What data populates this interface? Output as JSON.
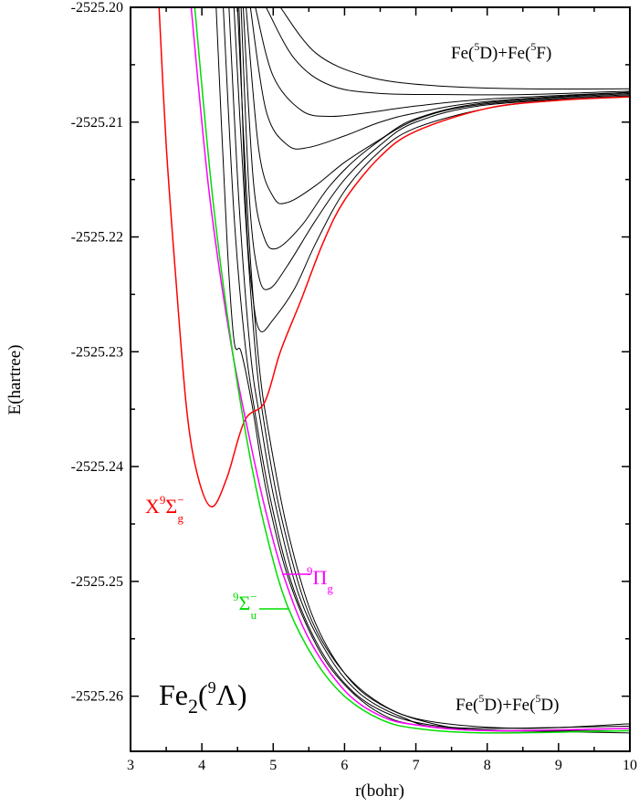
{
  "chart_data": {
    "type": "line",
    "title": "",
    "xlabel": "r(bohr)",
    "ylabel": "E(hartree)",
    "xlim": [
      3,
      10
    ],
    "ylim": [
      -2525.2648,
      -2525.2
    ],
    "xticks": [
      3,
      4,
      5,
      6,
      7,
      8,
      9,
      10
    ],
    "xtick_labels": [
      "3",
      "4",
      "5",
      "6",
      "7",
      "8",
      "9",
      "10"
    ],
    "yticks": [
      -2525.2,
      -2525.21,
      -2525.22,
      -2525.23,
      -2525.24,
      -2525.25,
      -2525.26
    ],
    "ytick_labels": [
      "-2525.20",
      "-2525.21",
      "-2525.22",
      "-2525.23",
      "-2525.24",
      "-2525.25",
      "-2525.26"
    ],
    "grid": false,
    "colors": {
      "black": "#000000",
      "red": "#ff0000",
      "green": "#00dd00",
      "magenta": "#ff00ff"
    },
    "annotations": {
      "molecule": {
        "base": "Fe",
        "sub": "2",
        "open": "(",
        "sup": "9",
        "sym": "Λ)"
      },
      "upper_asymptote": {
        "a": "Fe(",
        "sup1": "5",
        "b": "D)+Fe(",
        "sup2": "5",
        "c": "F)"
      },
      "lower_asymptote": {
        "a": "Fe(",
        "sup1": "5",
        "b": "D)+Fe(",
        "sup2": "5",
        "c": "D)"
      },
      "ground_state": {
        "a": "X",
        "sup": "9",
        "sym": "Σ",
        "supminus": "−",
        "sub": "g"
      },
      "pi_state": {
        "sup": "9",
        "sym": "Π",
        "sub": "g"
      },
      "sigma_u_state": {
        "sup": "9",
        "sym": "Σ",
        "supminus": "−",
        "sub": "u"
      }
    },
    "series": [
      {
        "color": "black",
        "points": [
          [
            4.52,
            -2525.2
          ],
          [
            4.62,
            -2525.218
          ],
          [
            4.72,
            -2525.2255
          ],
          [
            4.82,
            -2525.2282
          ],
          [
            5.0,
            -2525.2272
          ],
          [
            5.3,
            -2525.2245
          ],
          [
            5.6,
            -2525.2205
          ],
          [
            6.0,
            -2525.216
          ],
          [
            6.5,
            -2525.2125
          ],
          [
            7.0,
            -2525.2105
          ],
          [
            8.0,
            -2525.2088
          ],
          [
            9.0,
            -2525.2081
          ],
          [
            10.0,
            -2525.2078
          ]
        ]
      },
      {
        "color": "black",
        "points": [
          [
            4.55,
            -2525.2
          ],
          [
            4.67,
            -2525.217
          ],
          [
            4.8,
            -2525.2235
          ],
          [
            4.95,
            -2525.2245
          ],
          [
            5.2,
            -2525.2225
          ],
          [
            5.6,
            -2525.2185
          ],
          [
            6.0,
            -2525.215
          ],
          [
            6.5,
            -2525.212
          ],
          [
            7.0,
            -2525.21
          ],
          [
            8.0,
            -2525.2085
          ],
          [
            10.0,
            -2525.2077
          ]
        ]
      },
      {
        "color": "black",
        "points": [
          [
            4.58,
            -2525.2
          ],
          [
            4.72,
            -2525.215
          ],
          [
            4.87,
            -2525.22
          ],
          [
            5.05,
            -2525.221
          ],
          [
            5.4,
            -2525.219
          ],
          [
            5.8,
            -2525.2155
          ],
          [
            6.3,
            -2525.2125
          ],
          [
            7.0,
            -2525.2098
          ],
          [
            8.0,
            -2525.2084
          ],
          [
            10.0,
            -2525.2076
          ]
        ]
      },
      {
        "color": "black",
        "points": [
          [
            4.62,
            -2525.2
          ],
          [
            4.8,
            -2525.2125
          ],
          [
            5.0,
            -2525.2165
          ],
          [
            5.2,
            -2525.217
          ],
          [
            5.6,
            -2525.2155
          ],
          [
            6.0,
            -2525.2135
          ],
          [
            6.5,
            -2525.2115
          ],
          [
            7.0,
            -2525.2097
          ],
          [
            8.0,
            -2525.2083
          ],
          [
            10.0,
            -2525.2075
          ]
        ]
      },
      {
        "color": "black",
        "points": [
          [
            4.68,
            -2525.2
          ],
          [
            4.9,
            -2525.209
          ],
          [
            5.2,
            -2525.212
          ],
          [
            5.5,
            -2525.2122
          ],
          [
            6.0,
            -2525.2112
          ],
          [
            6.5,
            -2525.21
          ],
          [
            7.0,
            -2525.2092
          ],
          [
            8.0,
            -2525.2082
          ],
          [
            10.0,
            -2525.2074
          ]
        ]
      },
      {
        "color": "black",
        "points": [
          [
            4.75,
            -2525.2
          ],
          [
            5.0,
            -2525.206
          ],
          [
            5.4,
            -2525.209
          ],
          [
            5.8,
            -2525.2095
          ],
          [
            6.3,
            -2525.2092
          ],
          [
            7.0,
            -2525.2086
          ],
          [
            8.0,
            -2525.208
          ],
          [
            10.0,
            -2525.2074
          ]
        ]
      },
      {
        "color": "black",
        "points": [
          [
            4.9,
            -2525.2
          ],
          [
            5.3,
            -2525.2045
          ],
          [
            5.8,
            -2525.2068
          ],
          [
            6.5,
            -2525.2075
          ],
          [
            7.5,
            -2525.2076
          ],
          [
            8.5,
            -2525.2076
          ],
          [
            10.0,
            -2525.2073
          ]
        ]
      },
      {
        "color": "black",
        "points": [
          [
            5.1,
            -2525.2
          ],
          [
            5.6,
            -2525.204
          ],
          [
            6.3,
            -2525.206
          ],
          [
            7.2,
            -2525.2068
          ],
          [
            8.5,
            -2525.2071
          ],
          [
            10.0,
            -2525.2071
          ]
        ]
      },
      {
        "color": "black",
        "points": [
          [
            4.2,
            -2525.2
          ],
          [
            4.35,
            -2525.22
          ],
          [
            4.45,
            -2525.229
          ],
          [
            4.55,
            -2525.23
          ],
          [
            4.7,
            -2525.2345
          ],
          [
            4.9,
            -2525.242
          ],
          [
            5.2,
            -2525.2495
          ],
          [
            5.6,
            -2525.2555
          ],
          [
            6.0,
            -2525.259
          ],
          [
            6.5,
            -2525.2615
          ],
          [
            7.0,
            -2525.2625
          ],
          [
            8.0,
            -2525.263
          ],
          [
            10.0,
            -2525.263
          ]
        ]
      },
      {
        "color": "black",
        "points": [
          [
            4.3,
            -2525.2
          ],
          [
            4.45,
            -2525.218
          ],
          [
            4.6,
            -2525.229
          ],
          [
            4.75,
            -2525.2355
          ],
          [
            4.95,
            -2525.2425
          ],
          [
            5.25,
            -2525.25
          ],
          [
            5.65,
            -2525.2558
          ],
          [
            6.1,
            -2525.2595
          ],
          [
            6.6,
            -2525.2615
          ],
          [
            7.2,
            -2525.2625
          ],
          [
            8.0,
            -2525.2628
          ],
          [
            10.0,
            -2525.2626
          ]
        ]
      },
      {
        "color": "black",
        "points": [
          [
            4.38,
            -2525.2
          ],
          [
            4.52,
            -2525.217
          ],
          [
            4.68,
            -2525.23
          ],
          [
            4.82,
            -2525.236
          ],
          [
            5.02,
            -2525.243
          ],
          [
            5.35,
            -2525.251
          ],
          [
            5.75,
            -2525.2562
          ],
          [
            6.2,
            -2525.2597
          ],
          [
            6.8,
            -2525.2618
          ],
          [
            7.5,
            -2525.2628
          ],
          [
            10.0,
            -2525.2632
          ]
        ]
      },
      {
        "color": "black",
        "points": [
          [
            4.45,
            -2525.2
          ],
          [
            4.6,
            -2525.217
          ],
          [
            4.75,
            -2525.23
          ],
          [
            4.88,
            -2525.2365
          ],
          [
            5.1,
            -2525.244
          ],
          [
            5.45,
            -2525.252
          ],
          [
            5.85,
            -2525.2568
          ],
          [
            6.35,
            -2525.26
          ],
          [
            7.0,
            -2525.262
          ],
          [
            8.0,
            -2525.263
          ],
          [
            10.0,
            -2525.2628
          ]
        ]
      },
      {
        "color": "black",
        "points": [
          [
            4.5,
            -2525.2
          ],
          [
            4.65,
            -2525.219
          ],
          [
            4.8,
            -2525.231
          ],
          [
            4.95,
            -2525.2375
          ],
          [
            5.2,
            -2525.2455
          ],
          [
            5.55,
            -2525.253
          ],
          [
            6.0,
            -2525.258
          ],
          [
            6.5,
            -2525.2607
          ],
          [
            7.2,
            -2525.2622
          ],
          [
            8.5,
            -2525.2628
          ],
          [
            10.0,
            -2525.2624
          ]
        ]
      },
      {
        "color": "red",
        "name": "X9Σg−",
        "points": [
          [
            3.4,
            -2525.2
          ],
          [
            3.5,
            -2525.212
          ],
          [
            3.63,
            -2525.2232
          ],
          [
            3.79,
            -2525.2352
          ],
          [
            3.95,
            -2525.241
          ],
          [
            4.14,
            -2525.2435
          ],
          [
            4.35,
            -2525.241
          ],
          [
            4.6,
            -2525.236
          ],
          [
            4.88,
            -2525.2344
          ],
          [
            5.1,
            -2525.23
          ],
          [
            5.39,
            -2525.2255
          ],
          [
            5.7,
            -2525.2205
          ],
          [
            6.0,
            -2525.2168
          ],
          [
            6.5,
            -2525.213
          ],
          [
            7.0,
            -2525.2108
          ],
          [
            8.0,
            -2525.2088
          ],
          [
            9.0,
            -2525.2081
          ],
          [
            10.0,
            -2525.2078
          ]
        ]
      },
      {
        "color": "magenta",
        "name": "9Πg",
        "points": [
          [
            3.85,
            -2525.2
          ],
          [
            4.1,
            -2525.216
          ],
          [
            4.4,
            -2525.229
          ],
          [
            4.7,
            -2525.2385
          ],
          [
            4.9,
            -2525.244
          ],
          [
            5.14,
            -2525.2494
          ],
          [
            5.5,
            -2525.255
          ],
          [
            6.0,
            -2525.2595
          ],
          [
            6.5,
            -2525.2617
          ],
          [
            7.0,
            -2525.2625
          ],
          [
            8.0,
            -2525.263
          ],
          [
            10.0,
            -2525.2628
          ]
        ]
      },
      {
        "color": "green",
        "name": "9Σu−",
        "points": [
          [
            3.9,
            -2525.2
          ],
          [
            4.15,
            -2525.2165
          ],
          [
            4.43,
            -2525.23
          ],
          [
            4.7,
            -2525.24
          ],
          [
            4.95,
            -2525.247
          ],
          [
            5.21,
            -2525.2523
          ],
          [
            5.6,
            -2525.257
          ],
          [
            6.0,
            -2525.26
          ],
          [
            6.5,
            -2525.262
          ],
          [
            7.0,
            -2525.2628
          ],
          [
            8.0,
            -2525.2632
          ],
          [
            10.0,
            -2525.263
          ]
        ]
      }
    ]
  }
}
